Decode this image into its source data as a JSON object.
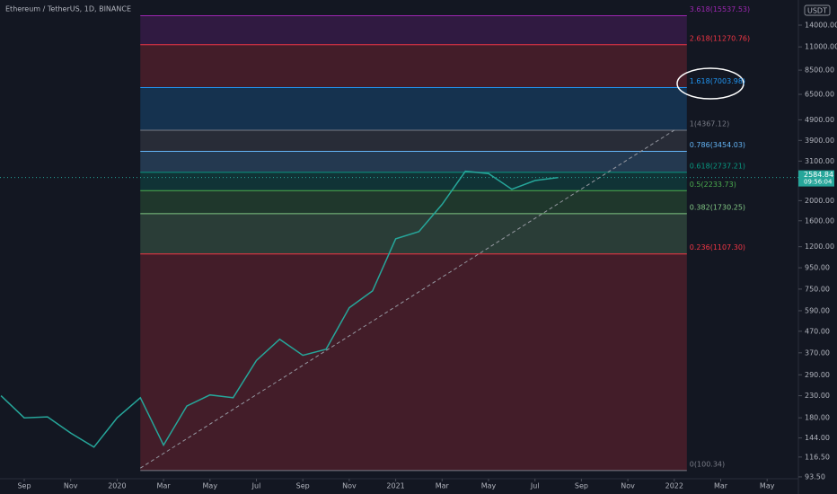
{
  "chart_data": {
    "type": "line",
    "title": "Ethereum / TetherUS, 1D, BINANCE",
    "currency": "USDT",
    "log_scale": true,
    "color": "#26a69a",
    "x": [
      "2019-08",
      "2019-09",
      "2019-10",
      "2019-11",
      "2019-12",
      "2020-01",
      "2020-02",
      "2020-03",
      "2020-04",
      "2020-05",
      "2020-06",
      "2020-07",
      "2020-08",
      "2020-09",
      "2020-10",
      "2020-11",
      "2020-12",
      "2021-01",
      "2021-02",
      "2021-03",
      "2021-04",
      "2021-05",
      "2021-06",
      "2021-07",
      "2021-08"
    ],
    "values": [
      230,
      180,
      182,
      152,
      130,
      180,
      225,
      133,
      205,
      232,
      225,
      340,
      430,
      360,
      385,
      610,
      735,
      1310,
      1420,
      1920,
      2770,
      2700,
      2270,
      2500,
      2584.84
    ],
    "last_price": 2584.84,
    "countdown": "09:56:04",
    "ylim": [
      91.6,
      18500
    ],
    "yticks": [
      {
        "value": 93.5,
        "label": "93.50"
      },
      {
        "value": 116.5,
        "label": "116.50"
      },
      {
        "value": 144,
        "label": "144.00"
      },
      {
        "value": 180,
        "label": "180.00"
      },
      {
        "value": 230,
        "label": "230.00"
      },
      {
        "value": 290,
        "label": "290.00"
      },
      {
        "value": 370,
        "label": "370.00"
      },
      {
        "value": 470,
        "label": "470.00"
      },
      {
        "value": 590,
        "label": "590.00"
      },
      {
        "value": 750,
        "label": "750.00"
      },
      {
        "value": 950,
        "label": "950.00"
      },
      {
        "value": 1200,
        "label": "1200.00"
      },
      {
        "value": 1600,
        "label": "1600.00"
      },
      {
        "value": 2000,
        "label": "2000.00"
      },
      {
        "value": 3100,
        "label": "3100.00"
      },
      {
        "value": 3900,
        "label": "3900.00"
      },
      {
        "value": 4900,
        "label": "4900.00"
      },
      {
        "value": 6500,
        "label": "6500.00"
      },
      {
        "value": 8500,
        "label": "8500.00"
      },
      {
        "value": 11000,
        "label": "11000.00"
      },
      {
        "value": 14000,
        "label": "14000.00"
      }
    ],
    "xticks": [
      {
        "value": "2019-09",
        "label": "Sep"
      },
      {
        "value": "2019-11",
        "label": "Nov"
      },
      {
        "value": "2020-01",
        "label": "2020"
      },
      {
        "value": "2020-03",
        "label": "Mar"
      },
      {
        "value": "2020-05",
        "label": "May"
      },
      {
        "value": "2020-07",
        "label": "Jul"
      },
      {
        "value": "2020-09",
        "label": "Sep"
      },
      {
        "value": "2020-11",
        "label": "Nov"
      },
      {
        "value": "2021-01",
        "label": "2021"
      },
      {
        "value": "2021-03",
        "label": "Mar"
      },
      {
        "value": "2021-05",
        "label": "May"
      },
      {
        "value": "2021-07",
        "label": "Jul"
      },
      {
        "value": "2021-09",
        "label": "Sep"
      },
      {
        "value": "2021-11",
        "label": "Nov"
      },
      {
        "value": "2022-01",
        "label": "2022"
      },
      {
        "value": "2022-03",
        "label": "Mar"
      },
      {
        "value": "2022-05",
        "label": "May"
      }
    ],
    "fib_x": [
      "2020-02",
      "2022-01"
    ],
    "fib_levels": [
      {
        "value": 15537.53,
        "label": "3.618(15537.53)",
        "color": "#9c27b0"
      },
      {
        "value": 11270.76,
        "label": "2.618(11270.76)",
        "color": "#f23645"
      },
      {
        "value": 7003.98,
        "label": "1.618(7003.98)",
        "color": "#2196f3"
      },
      {
        "value": 4367.12,
        "label": "1(4367.12)",
        "color": "#787b86"
      },
      {
        "value": 3454.03,
        "label": "0.786(3454.03)",
        "color": "#64b5f6"
      },
      {
        "value": 2737.21,
        "label": "0.618(2737.21)",
        "color": "#089981"
      },
      {
        "value": 2233.73,
        "label": "0.5(2233.73)",
        "color": "#4caf50"
      },
      {
        "value": 1730.25,
        "label": "0.382(1730.25)",
        "color": "#81c784"
      },
      {
        "value": 1107.3,
        "label": "0.236(1107.30)",
        "color": "#f23645"
      },
      {
        "value": 100.34,
        "label": "0(100.34)",
        "color": "#787b86"
      }
    ],
    "trendline": {
      "x": [
        "2020-02",
        "2022-01"
      ],
      "values": [
        103,
        4367
      ]
    }
  }
}
